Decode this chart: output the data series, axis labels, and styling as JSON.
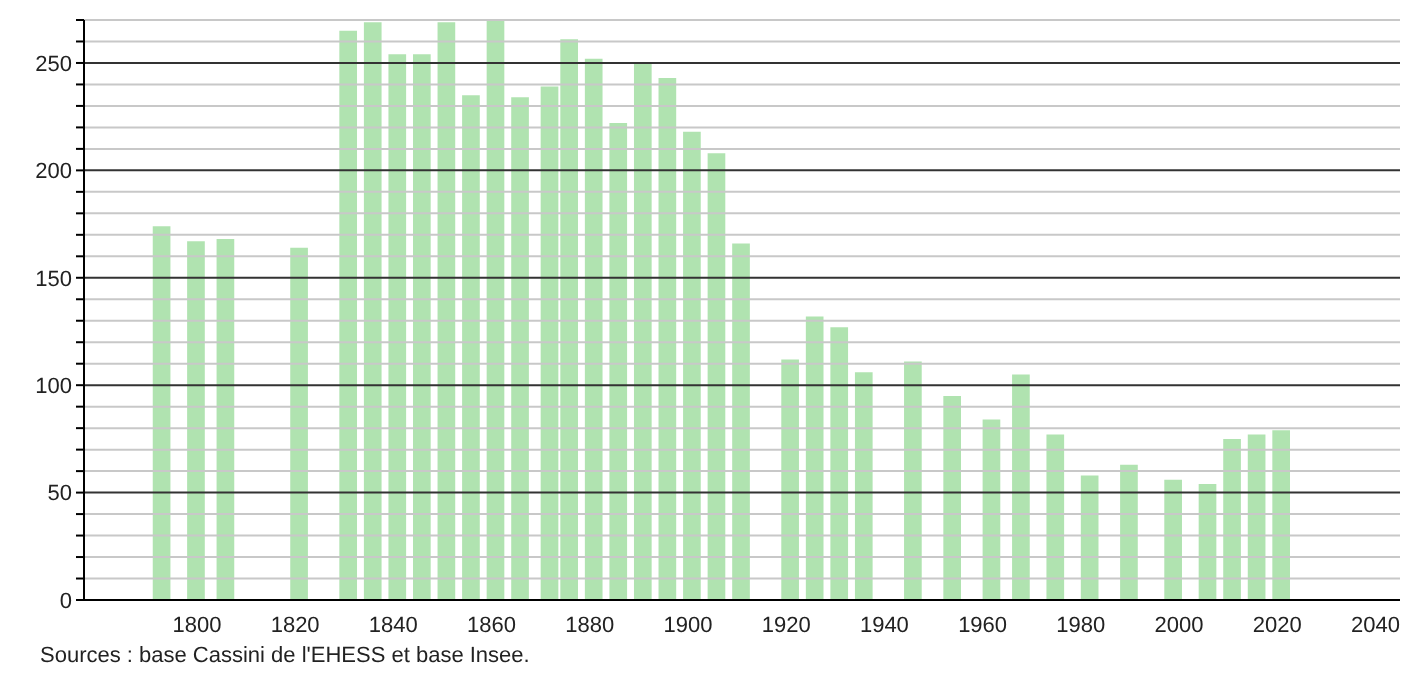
{
  "chart_data": {
    "type": "bar",
    "x": [
      1793,
      1800,
      1806,
      1821,
      1831,
      1836,
      1841,
      1846,
      1851,
      1856,
      1861,
      1866,
      1872,
      1876,
      1881,
      1886,
      1891,
      1896,
      1901,
      1906,
      1911,
      1921,
      1926,
      1931,
      1936,
      1946,
      1954,
      1962,
      1968,
      1975,
      1982,
      1990,
      1999,
      2006,
      2011,
      2016,
      2021
    ],
    "values": [
      174,
      167,
      168,
      164,
      265,
      269,
      254,
      254,
      269,
      235,
      270,
      234,
      239,
      261,
      252,
      222,
      250,
      243,
      218,
      208,
      166,
      112,
      132,
      127,
      106,
      111,
      95,
      84,
      105,
      77,
      58,
      63,
      56,
      54,
      75,
      77,
      79
    ],
    "color": "#b0e3b0",
    "xlim": [
      1777,
      2045
    ],
    "xticks": [
      1800,
      1820,
      1840,
      1860,
      1880,
      1900,
      1920,
      1940,
      1960,
      1980,
      2000,
      2020,
      2040
    ],
    "ylim": [
      0,
      270
    ],
    "yticks": [
      0,
      {
        "value": 10,
        "label": null
      },
      {
        "value": 20,
        "label": null
      },
      {
        "value": 30,
        "label": null
      },
      {
        "value": 40,
        "label": null
      },
      50,
      {
        "value": 60,
        "label": null
      },
      {
        "value": 70,
        "label": null
      },
      {
        "value": 80,
        "label": null
      },
      {
        "value": 90,
        "label": null
      },
      100,
      {
        "value": 110,
        "label": null
      },
      {
        "value": 120,
        "label": null
      },
      {
        "value": 130,
        "label": null
      },
      {
        "value": 140,
        "label": null
      },
      150,
      {
        "value": 160,
        "label": null
      },
      {
        "value": 170,
        "label": null
      },
      {
        "value": 180,
        "label": null
      },
      {
        "value": 190,
        "label": null
      },
      200,
      {
        "value": 210,
        "label": null
      },
      {
        "value": 220,
        "label": null
      },
      {
        "value": 230,
        "label": null
      },
      {
        "value": 240,
        "label": null
      },
      250,
      {
        "value": 260,
        "label": null
      },
      {
        "value": 270,
        "label": null
      }
    ],
    "grid": "y",
    "annotations": [
      "Sources : base Cassini de l'EHESS et base Insee."
    ]
  }
}
